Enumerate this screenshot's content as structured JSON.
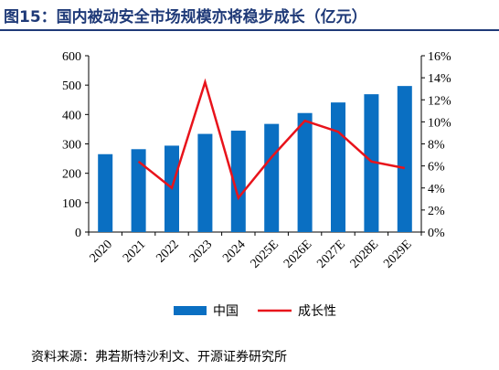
{
  "figure": {
    "title": "图15：国内被动安全市场规模亦将稳步成长（亿元）",
    "source": "资料来源：弗若斯特沙利文、开源证券研究所"
  },
  "chart_data": {
    "type": "bar",
    "categories": [
      "2020",
      "2021",
      "2022",
      "2023",
      "2024",
      "2025E",
      "2026E",
      "2027E",
      "2028E",
      "2029E"
    ],
    "series": [
      {
        "name": "中国",
        "type": "bar",
        "axis": "left",
        "color": "#0a6fc2",
        "values": [
          265,
          282,
          294,
          334,
          345,
          368,
          405,
          441,
          469,
          497
        ]
      },
      {
        "name": "成长性",
        "type": "line",
        "axis": "right",
        "color": "#e8131b",
        "values": [
          null,
          6.4,
          4.0,
          13.6,
          3.1,
          6.8,
          10.1,
          9.1,
          6.4,
          5.8
        ]
      }
    ],
    "y_left": {
      "min": 0,
      "max": 600,
      "ticks": [
        0,
        100,
        200,
        300,
        400,
        500,
        600
      ]
    },
    "y_right": {
      "min": 0,
      "max": 16,
      "ticks": [
        "0%",
        "2%",
        "4%",
        "6%",
        "8%",
        "10%",
        "12%",
        "14%",
        "16%"
      ]
    },
    "grid": false,
    "legend": "bottom-center"
  }
}
